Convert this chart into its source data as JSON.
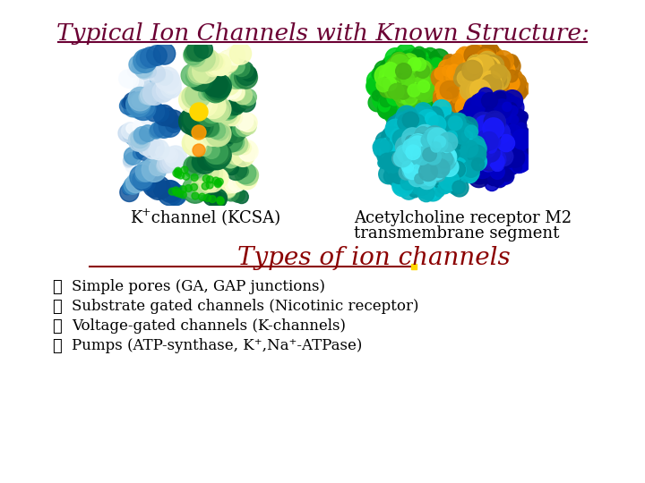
{
  "title": "Typical Ion Channels with Known Structure:",
  "title_color": "#6B0033",
  "title_fontsize": 19,
  "bg_color": "#FFFFFF",
  "label_left_main": "K",
  "label_left_sup": "+",
  "label_left_rest": " channel (KCSA)",
  "label_right": "Acetylcholine receptor M2\ntransmembrane segment",
  "label_fontsize": 13,
  "label_color": "#000000",
  "section_title": "Types of ion channels",
  "section_title_color": "#8B0000",
  "section_title_fontsize": 20,
  "bullet_color": "#000000",
  "bullet_fontsize": 12,
  "bullets": [
    "Simple pores (GA, GAP junctions)",
    "Substrate gated channels (Nicotinic receptor)",
    "Voltage-gated channels (K-channels)",
    "Pumps (ATP-synthase, K⁺,Na⁺-ATPase)"
  ]
}
